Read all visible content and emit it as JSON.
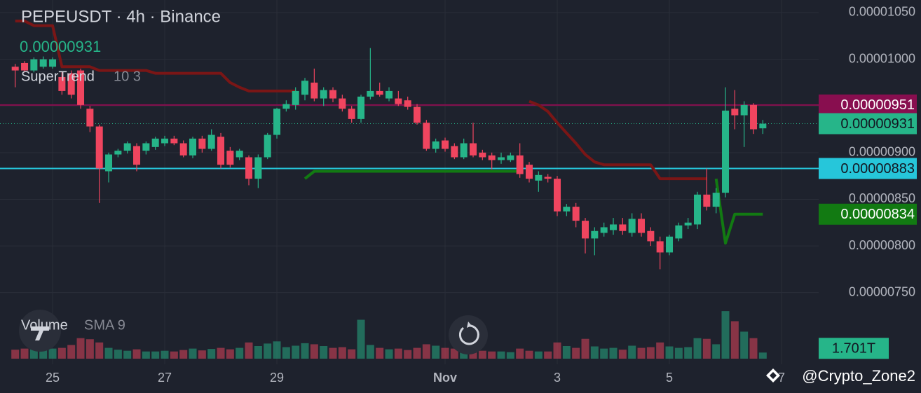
{
  "chart_data": {
    "type": "candlestick",
    "title": "PEPEUSDT · 4h · Binance",
    "categories": [
      null,
      null,
      null,
      null,
      "25",
      null,
      null,
      null,
      null,
      null,
      null,
      null,
      null,
      null,
      null,
      null,
      "27",
      null,
      null,
      null,
      null,
      null,
      null,
      null,
      null,
      null,
      null,
      null,
      "29",
      null,
      null,
      null,
      null,
      null,
      null,
      null,
      null,
      null,
      null,
      null,
      null,
      null,
      null,
      null,
      null,
      null,
      "Nov",
      null,
      null,
      null,
      null,
      null,
      null,
      null,
      null,
      null,
      null,
      null,
      "3",
      null,
      null,
      null,
      null,
      null,
      null,
      null,
      null,
      null,
      null,
      null,
      "5",
      null,
      null,
      null,
      null,
      null,
      null,
      null,
      null,
      null,
      null,
      null,
      "7"
    ],
    "series": [
      {
        "name": "PEPEUSDT",
        "up_color": "#26b589",
        "down_color": "#f0455f",
        "open": [
          9.92e-06,
          9.96e-06,
          9.88e-06,
          9.92e-06,
          9.92e-06,
          9.81e-06,
          9.85e-06,
          9.88e-06,
          9.47e-06,
          9.28e-06,
          8.8e-06,
          8.98e-06,
          9.02e-06,
          9.07e-06,
          9.02e-06,
          9.06e-06,
          9.1e-06,
          9.15e-06,
          9.1e-06,
          8.97e-06,
          9.15e-06,
          9.04e-06,
          9.17e-06,
          9.02e-06,
          8.95e-06,
          8.95e-06,
          8.72e-06,
          8.95e-06,
          9.19e-06,
          9.47e-06,
          9.51e-06,
          9.62e-06,
          9.75e-06,
          9.58e-06,
          9.67e-06,
          9.58e-06,
          9.47e-06,
          9.36e-06,
          9.6e-06,
          9.66e-06,
          9.58e-06,
          9.58e-06,
          9.56e-06,
          9.49e-06,
          9.32e-06,
          9.04e-06,
          9.13e-06,
          9.07e-06,
          8.95e-06,
          9.1e-06,
          9e-06,
          8.97e-06,
          8.92e-06,
          8.92e-06,
          8.97e-06,
          8.87e-06,
          8.7e-06,
          8.74e-06,
          8.72e-06,
          8.37e-06,
          8.42e-06,
          8.27e-06,
          8.08e-06,
          8.14e-06,
          8.17e-06,
          8.23e-06,
          8.14e-06,
          8.29e-06,
          8.16e-06,
          8.05e-06,
          7.93e-06,
          8.08e-06,
          8.22e-06,
          8.23e-06,
          8.55e-06,
          8.42e-06,
          8.57e-06,
          9.47e-06,
          9.4e-06,
          9.51e-06,
          9.26e-06,
          null,
          null
        ],
        "high": [
          9.95e-06,
          9.98e-06,
          1.002e-05,
          1.003e-05,
          1.002e-05,
          9.86e-06,
          9.88e-06,
          9.9e-06,
          9.5e-06,
          9.3e-06,
          9e-06,
          9.04e-06,
          9.12e-06,
          9.1e-06,
          9.12e-06,
          9.17e-06,
          9.18e-06,
          9.18e-06,
          9.13e-06,
          9.17e-06,
          9.18e-06,
          9.25e-06,
          9.21e-06,
          9.06e-06,
          9.04e-06,
          8.97e-06,
          8.98e-06,
          9.21e-06,
          9.48e-06,
          9.56e-06,
          9.7e-06,
          9.8e-06,
          9.9e-06,
          9.7e-06,
          9.7e-06,
          9.62e-06,
          9.5e-06,
          9.62e-06,
          1.012e-05,
          9.75e-06,
          9.7e-06,
          9.66e-06,
          9.6e-06,
          9.52e-06,
          9.35e-06,
          9.15e-06,
          9.16e-06,
          9.1e-06,
          9.15e-06,
          9.32e-06,
          9.03e-06,
          9e-06,
          9e-06,
          9e-06,
          9.1e-06,
          8.9e-06,
          8.8e-06,
          8.77e-06,
          8.75e-06,
          8.45e-06,
          8.46e-06,
          8.3e-06,
          8.2e-06,
          8.25e-06,
          8.3e-06,
          8.3e-06,
          8.35e-06,
          8.35e-06,
          8.2e-06,
          8.1e-06,
          8.12e-06,
          8.25e-06,
          8.3e-06,
          8.58e-06,
          8.83e-06,
          8.62e-06,
          9.7e-06,
          9.67e-06,
          9.55e-06,
          9.53e-06,
          9.35e-06,
          null,
          null
        ],
        "low": [
          9.7e-06,
          9.86e-06,
          9.86e-06,
          9.9e-06,
          9.9e-06,
          9.62e-06,
          9.58e-06,
          9.47e-06,
          9.22e-06,
          8.46e-06,
          8.68e-06,
          8.95e-06,
          8.99e-06,
          8.8e-06,
          8.98e-06,
          9.03e-06,
          9.07e-06,
          9.08e-06,
          8.95e-06,
          8.94e-06,
          9e-06,
          9.02e-06,
          8.83e-06,
          8.84e-06,
          8.92e-06,
          8.65e-06,
          8.62e-06,
          8.93e-06,
          9.15e-06,
          9.44e-06,
          9.46e-06,
          9.56e-06,
          9.55e-06,
          9.5e-06,
          9.54e-06,
          9.44e-06,
          9.32e-06,
          9.32e-06,
          9.57e-06,
          9.6e-06,
          9.55e-06,
          9.5e-06,
          9.46e-06,
          9.3e-06,
          9.02e-06,
          9e-06,
          9.01e-06,
          8.93e-06,
          8.93e-06,
          8.95e-06,
          8.92e-06,
          8.82e-06,
          8.88e-06,
          8.9e-06,
          8.73e-06,
          8.68e-06,
          8.58e-06,
          8.68e-06,
          8.32e-06,
          8.32e-06,
          8.2e-06,
          7.92e-06,
          7.9e-06,
          8.1e-06,
          8.12e-06,
          8.12e-06,
          8.1e-06,
          8.1e-06,
          8e-06,
          7.75e-06,
          7.9e-06,
          8.05e-06,
          8.18e-06,
          8.18e-06,
          8.38e-06,
          8.35e-06,
          8.52e-06,
          9.25e-06,
          9.06e-06,
          9.2e-06,
          9.2e-06,
          null,
          null
        ],
        "close": [
          9.88e-06,
          9.88e-06,
          1e-05,
          1e-05,
          1e-05,
          9.66e-06,
          9.62e-06,
          9.51e-06,
          9.28e-06,
          8.83e-06,
          8.98e-06,
          9.02e-06,
          9.1e-06,
          8.87e-06,
          9.1e-06,
          9.15e-06,
          9.15e-06,
          9.1e-06,
          8.97e-06,
          9.15e-06,
          9.04e-06,
          9.19e-06,
          8.87e-06,
          8.87e-06,
          9.02e-06,
          8.72e-06,
          8.95e-06,
          9.19e-06,
          9.47e-06,
          9.52e-06,
          9.66e-06,
          9.77e-06,
          9.58e-06,
          9.67e-06,
          9.58e-06,
          9.47e-06,
          9.36e-06,
          9.6e-06,
          9.66e-06,
          9.62e-06,
          9.66e-06,
          9.52e-06,
          9.49e-06,
          9.32e-06,
          9.04e-06,
          9.12e-06,
          9.04e-06,
          8.95e-06,
          9.1e-06,
          8.97e-06,
          8.95e-06,
          8.92e-06,
          8.95e-06,
          8.97e-06,
          8.77e-06,
          8.72e-06,
          8.76e-06,
          8.72e-06,
          8.37e-06,
          8.42e-06,
          8.27e-06,
          8.08e-06,
          8.16e-06,
          8.2e-06,
          8.23e-06,
          8.16e-06,
          8.29e-06,
          8.14e-06,
          8.05e-06,
          7.93e-06,
          8.1e-06,
          8.22e-06,
          8.25e-06,
          8.55e-06,
          8.42e-06,
          8.57e-06,
          9.45e-06,
          9.4e-06,
          9.51e-06,
          9.25e-06,
          9.31e-06,
          null,
          null
        ]
      }
    ],
    "supertrend": {
      "name": "SuperTrend",
      "params": "10 3",
      "up_color": "#127a12",
      "down_color": "#7a1616",
      "last_label": "0.00000834",
      "down_values": [
        1.041e-05,
        1.041e-05,
        1.036e-05,
        1.036e-05,
        1.036e-05,
        9.92e-06,
        9.92e-06,
        9.92e-06,
        9.92e-06,
        9.88e-06,
        9.88e-06,
        9.88e-06,
        9.88e-06,
        9.88e-06,
        9.88e-06,
        9.85e-06,
        9.85e-06,
        9.85e-06,
        9.85e-06,
        9.85e-06,
        9.85e-06,
        9.85e-06,
        9.85e-06,
        9.75e-06,
        9.7e-06,
        9.66e-06,
        9.66e-06,
        9.66e-06,
        9.66e-06,
        9.66e-06,
        9.66e-06,
        null,
        null,
        null,
        null,
        null,
        null,
        null,
        null,
        null,
        null,
        null,
        null,
        null,
        null,
        null,
        null,
        null,
        null,
        null,
        null,
        null,
        null,
        null,
        null,
        9.55e-06,
        9.51e-06,
        9.44e-06,
        9.32e-06,
        9.21e-06,
        9.1e-06,
        8.98e-06,
        8.9e-06,
        8.87e-06,
        8.87e-06,
        8.87e-06,
        8.87e-06,
        8.87e-06,
        8.87e-06,
        8.72e-06,
        8.72e-06,
        8.72e-06,
        8.72e-06,
        8.72e-06,
        8.72e-06,
        null,
        null,
        null,
        null,
        null,
        null,
        null,
        null
      ],
      "up_values": [
        null,
        null,
        null,
        null,
        null,
        null,
        null,
        null,
        null,
        null,
        null,
        null,
        null,
        null,
        null,
        null,
        null,
        null,
        null,
        null,
        null,
        null,
        null,
        null,
        null,
        null,
        null,
        null,
        null,
        null,
        null,
        8.72e-06,
        8.8e-06,
        8.8e-06,
        8.8e-06,
        8.8e-06,
        8.8e-06,
        8.8e-06,
        8.8e-06,
        8.8e-06,
        8.8e-06,
        8.8e-06,
        8.8e-06,
        8.8e-06,
        8.8e-06,
        8.8e-06,
        8.8e-06,
        8.8e-06,
        8.8e-06,
        8.8e-06,
        8.8e-06,
        8.8e-06,
        8.8e-06,
        8.8e-06,
        8.8e-06,
        null,
        null,
        null,
        null,
        null,
        null,
        null,
        null,
        null,
        null,
        null,
        null,
        null,
        null,
        null,
        null,
        null,
        null,
        null,
        null,
        8.72e-06,
        8.03e-06,
        8.34e-06,
        8.34e-06,
        8.34e-06,
        8.34e-06,
        null,
        null
      ]
    },
    "volume": {
      "name": "Volume",
      "params": "SMA 9",
      "last_label": "1.701T",
      "vlim": [
        0,
        14
      ],
      "values": [
        2.5,
        2.8,
        2.6,
        2.7,
        2.8,
        3.0,
        3.8,
        5.7,
        5.4,
        4.5,
        3.0,
        2.5,
        2.2,
        2.6,
        2.0,
        2.0,
        2.2,
        2.0,
        2.4,
        2.8,
        2.3,
        2.7,
        3.0,
        2.6,
        3.0,
        4.5,
        3.5,
        4.2,
        4.8,
        3.2,
        3.6,
        4.3,
        4.0,
        3.5,
        3.0,
        3.2,
        2.6,
        10.8,
        3.8,
        3.0,
        2.6,
        2.8,
        2.4,
        3.0,
        4.0,
        3.6,
        3.0,
        2.8,
        3.2,
        2.6,
        2.2,
        2.0,
        2.0,
        1.8,
        2.8,
        2.2,
        2.0,
        2.0,
        4.5,
        3.5,
        3.0,
        5.5,
        3.4,
        2.8,
        3.0,
        2.5,
        3.6,
        3.0,
        3.2,
        4.5,
        3.4,
        3.0,
        3.2,
        5.7,
        5.5,
        4.0,
        13.2,
        10.4,
        7.5,
        5.7,
        1.701,
        null,
        null
      ]
    },
    "current_price": {
      "value": 9.31e-06,
      "label": "0.00000931",
      "color": "#26b589"
    },
    "levels": [
      {
        "value": 9.51e-06,
        "label": "0.00000951",
        "color": "#880e4f",
        "text_color": "#ffffff"
      },
      {
        "value": 8.83e-06,
        "label": "0.00000883",
        "color": "#26c6da",
        "text_color": "#131722"
      }
    ],
    "ylim": [
      7.37e-06,
      1.0635e-05
    ],
    "yticks": [
      {
        "value": 1.05e-05,
        "label": "0.00001050"
      },
      {
        "value": 1e-05,
        "label": "0.00001000"
      },
      {
        "value": 9.5e-06,
        "label": "0.00000950"
      },
      {
        "value": 9e-06,
        "label": "0.00000900"
      },
      {
        "value": 8.5e-06,
        "label": "0.00000850"
      },
      {
        "value": 8e-06,
        "label": "0.00000800"
      },
      {
        "value": 7.5e-06,
        "label": "0.00000750"
      }
    ],
    "grid": true,
    "watermark": "@Crypto_Zone2"
  }
}
